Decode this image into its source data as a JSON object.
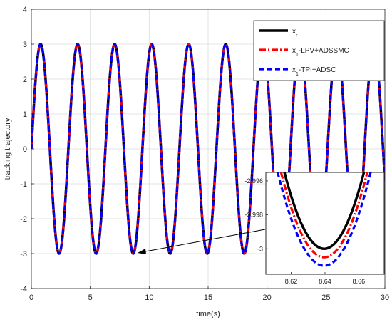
{
  "chart_data": [
    {
      "type": "line",
      "title": "",
      "xlabel": "time(s)",
      "ylabel": "tracking trajectory",
      "xlim": [
        0,
        30
      ],
      "ylim": [
        -4,
        4
      ],
      "xticks": [
        "0",
        "5",
        "10",
        "15",
        "20",
        "25",
        "30"
      ],
      "yticks": [
        "-4",
        "-3",
        "-2",
        "-1",
        "0",
        "1",
        "2",
        "3",
        "4"
      ],
      "grid": true,
      "legend_position": "top-right",
      "signal": {
        "form": "amplitude * sin(2*pi*t/period)",
        "amplitude": 3,
        "period": 3.1416
      },
      "series": [
        {
          "name": "x_r",
          "label_main": "x",
          "label_sub": "r",
          "label_rest": "",
          "color": "#000000",
          "style": "solid",
          "x": [
            0,
            0.79,
            1.57,
            2.36,
            3.14,
            3.93,
            4.71,
            5.5,
            6.28,
            7.07,
            7.85,
            8.64,
            9.42,
            10.21,
            11.0,
            11.78,
            12.57,
            13.35,
            14.14,
            14.92,
            15.71,
            16.49,
            17.28,
            18.06,
            18.85,
            19.63,
            20.42,
            21.21,
            21.99,
            22.78,
            23.56,
            24.35,
            25.13,
            25.92,
            26.7,
            27.49,
            28.27,
            29.06,
            29.85,
            30.0
          ],
          "y": [
            0,
            3,
            0,
            -3,
            0,
            3,
            0,
            -3,
            0,
            3,
            0,
            -3,
            0,
            3,
            0,
            -3,
            0,
            3,
            0,
            -3,
            0,
            3,
            0,
            -3,
            0,
            3,
            0,
            -3,
            0,
            3,
            0,
            -3,
            0,
            3,
            0,
            -3,
            0,
            3,
            0,
            -0.9
          ]
        },
        {
          "name": "x_1-LPV+ADSSMC",
          "label_main": "x",
          "label_sub": "1",
          "label_rest": "-LPV+ADSSMC",
          "color": "#ff0000",
          "style": "dashdot",
          "x": [
            0,
            0.79,
            1.57,
            2.36,
            3.14,
            3.93,
            4.71,
            5.5,
            6.28,
            7.07,
            7.85,
            8.64,
            9.42,
            10.21,
            11.0,
            11.78,
            12.57,
            13.35,
            14.14,
            14.92,
            15.71,
            16.49,
            17.28,
            18.06,
            18.85,
            19.63,
            20.42,
            21.21,
            21.99,
            22.78,
            23.56,
            24.35,
            25.13,
            25.92,
            26.7,
            27.49,
            28.27,
            29.06,
            29.85,
            30.0
          ],
          "y": [
            0,
            3,
            0,
            -3,
            0,
            3,
            0,
            -3,
            0,
            3,
            0,
            -3,
            0,
            3,
            0,
            -3,
            0,
            3,
            0,
            -3,
            0,
            3,
            0,
            -3,
            0,
            3,
            0,
            -3,
            0,
            3,
            0,
            -3,
            0,
            3,
            0,
            -3,
            0,
            3,
            0,
            -0.9
          ]
        },
        {
          "name": "x_1-TPI+ADSC",
          "label_main": "x",
          "label_sub": "1",
          "label_rest": "-TPI+ADSC",
          "color": "#0000ff",
          "style": "dashed",
          "x": [
            0,
            0.79,
            1.57,
            2.36,
            3.14,
            3.93,
            4.71,
            5.5,
            6.28,
            7.07,
            7.85,
            8.64,
            9.42,
            10.21,
            11.0,
            11.78,
            12.57,
            13.35,
            14.14,
            14.92,
            15.71,
            16.49,
            17.28,
            18.06,
            18.85,
            19.63,
            20.42,
            21.21,
            21.99,
            22.78,
            23.56,
            24.35,
            25.13,
            25.92,
            26.7,
            27.49,
            28.27,
            29.06,
            29.85,
            30.0
          ],
          "y": [
            0,
            3,
            0,
            -3,
            0,
            3,
            0,
            -3,
            0,
            3,
            0,
            -3,
            0,
            3,
            0,
            -3,
            0,
            3,
            0,
            -3,
            0,
            3,
            0,
            -3,
            0,
            3,
            0,
            -3,
            0,
            3,
            0,
            -3,
            0,
            3,
            0,
            -3,
            0,
            3,
            0,
            -0.9
          ]
        }
      ],
      "annotations": [
        {
          "type": "arrow",
          "from": "inset",
          "to": {
            "x": 8.64,
            "y": -3.0
          }
        }
      ]
    },
    {
      "type": "line",
      "title": "",
      "inset_of": 0,
      "xlim": [
        8.605,
        8.675
      ],
      "ylim": [
        -3.0015,
        -2.9955
      ],
      "xticks": [
        "8.62",
        "8.64",
        "8.66"
      ],
      "yticks": [
        "-3",
        "-2.998",
        "-2.996"
      ],
      "grid": false,
      "series": [
        {
          "name": "x_r",
          "color": "#000000",
          "style": "solid",
          "x": [
            8.616,
            8.6395,
            8.663
          ],
          "y": [
            -2.9955,
            -3.0,
            -2.9955
          ]
        },
        {
          "name": "x_1-LPV+ADSSMC",
          "color": "#ff0000",
          "style": "dashdot",
          "x": [
            8.614,
            8.6395,
            8.665
          ],
          "y": [
            -2.9955,
            -3.0005,
            -2.9955
          ]
        },
        {
          "name": "x_1-TPI+ADSC",
          "color": "#0000ff",
          "style": "dashed",
          "x": [
            8.612,
            8.6395,
            8.667
          ],
          "y": [
            -2.9955,
            -3.001,
            -2.9955
          ]
        }
      ]
    }
  ]
}
